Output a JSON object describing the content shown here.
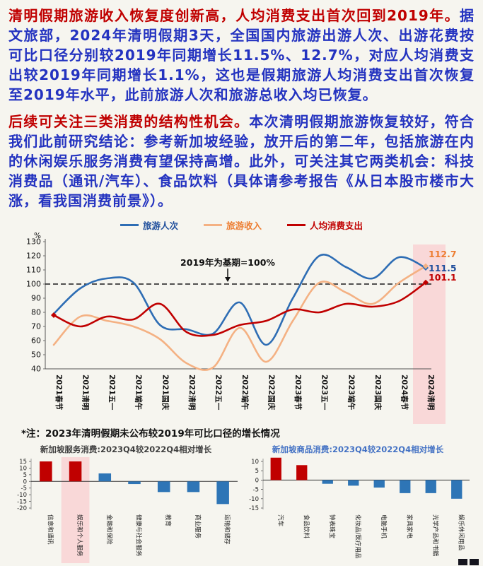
{
  "page": {
    "background": "#f6f5ef",
    "headline1": "清明假期旅游收入恢复度创新高，人均消费支出首次回到2019年。",
    "para1": "据文旅部，2024年清明假期3天，全国国内旅游出游人次、出游花费按可比口径分别较2019年同期增长11.5%、12.7%，对应人均消费支出较2019年同期增长1.1%，这也是假期旅游人均消费支出首次恢复至2019年水平，此前旅游人次和旅游总收入均已恢复。",
    "headline2": "后续可关注三类消费的结构性机会。",
    "para2": "本次清明假期旅游恢复较好，符合我们此前研究结论：参考新加坡经验，放开后的第二年，包括旅游在内的休闲娱乐服务消费有望保持高增。此外，可关注其它两类机会：科技消费品（通讯/汽车）、食品饮料（具体请参考报告《从日本股市楼市大涨，看我国消费前景》）。",
    "note": "*注：2023年清明假期未公布较2019年可比口径的增长情况"
  },
  "colors": {
    "headline_red": "#c00000",
    "body_blue": "#2433c0",
    "highlight_pink": "#f9d8d8",
    "bar_up_red": "#c00000",
    "bar_down_blue": "#2e75b6"
  },
  "chart_data": [
    {
      "type": "line",
      "ylabel": "%",
      "ylim": [
        40,
        130
      ],
      "yticks": [
        130,
        120,
        110,
        100,
        90,
        80,
        70,
        60,
        50,
        40
      ],
      "baseline_value": 100,
      "baseline_annotation": "2019年为基期=100%",
      "legend_position": "top",
      "grid": false,
      "highlight_last_category": true,
      "categories": [
        "2021春节",
        "2021清明",
        "2021五一",
        "2021端午",
        "2021国庆",
        "2022清明",
        "2022五一",
        "2022端午",
        "2022国庆",
        "2023春节",
        "2023五一",
        "2023端午",
        "2023国庆",
        "2024春节",
        "2024清明"
      ],
      "series": [
        {
          "name": "旅游人次",
          "color": "#2e6db4",
          "label_color": "#1f4e9c",
          "end_label": "111.5",
          "values": [
            79,
            97,
            104,
            101,
            71,
            68,
            65,
            87,
            57,
            90,
            120,
            112,
            104,
            119,
            111.5
          ]
        },
        {
          "name": "旅游收入",
          "color": "#f4b183",
          "label_color": "#ed7d31",
          "end_label": "112.7",
          "values": [
            57,
            77,
            74,
            70,
            61,
            44,
            41,
            69,
            45,
            74,
            101,
            94,
            86,
            101,
            112.7
          ]
        },
        {
          "name": "人均消费支出",
          "color": "#c00000",
          "label_color": "#c00000",
          "end_label": "101.1",
          "values": [
            78,
            70,
            77,
            75,
            86,
            66,
            64,
            71,
            74,
            82,
            80,
            86,
            84,
            88,
            101.1
          ]
        }
      ]
    },
    {
      "type": "bar",
      "title": "新加坡服务消费:2023Q4较2022Q4相对增长",
      "title_color": "#404040",
      "ylim": [
        -20,
        15
      ],
      "yticks": [
        15,
        10,
        5,
        0,
        -5,
        -10,
        -15,
        -20
      ],
      "categories": [
        "信息和通讯",
        "娱乐和个人服务",
        "金融和保险",
        "健康与社会服务",
        "教育",
        "商业服务",
        "运输和储存"
      ],
      "values": [
        15,
        15,
        6,
        -2,
        -8,
        -8,
        -17
      ],
      "bar_colors": [
        "#c00000",
        "#c00000",
        "#2e75b6",
        "#2e75b6",
        "#2e75b6",
        "#2e75b6",
        "#2e75b6"
      ],
      "highlight_index": 1
    },
    {
      "type": "bar",
      "title": "新加坡商品消费:2023Q4较2022Q4相对增长",
      "title_color": "#4472c4",
      "ylim": [
        -15,
        10
      ],
      "yticks": [
        10,
        5,
        0,
        -5,
        -10,
        -15
      ],
      "categories": [
        "汽车",
        "食品饮料",
        "钟表珠宝",
        "化妆品/医疗用品",
        "电脑手机",
        "家具家电",
        "光学产品和书籍",
        "娱乐休闲用品"
      ],
      "values": [
        12,
        8,
        -2,
        -3,
        -4,
        -7,
        -7,
        -10
      ],
      "bar_colors": [
        "#c00000",
        "#c00000",
        "#2e75b6",
        "#2e75b6",
        "#2e75b6",
        "#2e75b6",
        "#2e75b6",
        "#2e75b6"
      ],
      "highlight_index": -1
    }
  ]
}
